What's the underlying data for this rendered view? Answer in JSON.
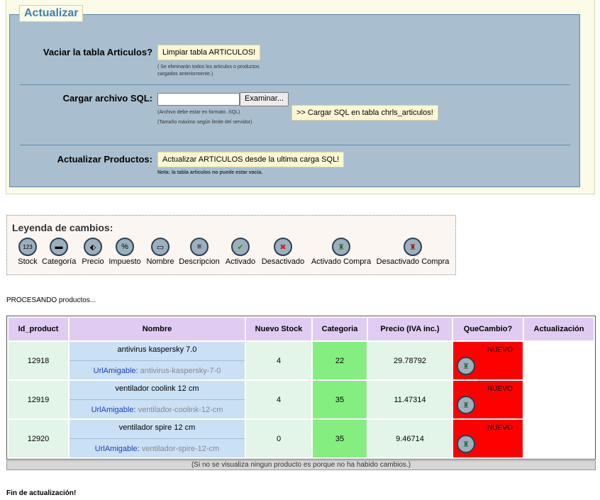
{
  "form": {
    "legend": "Actualizar",
    "vaciar": {
      "label": "Vaciar la tabla Articulos?",
      "button": "Limpiar tabla ARTICULOS!",
      "note_line1": "( Se eliminarán todos los articulos o productos",
      "note_line2": "cargados anteriormente.)"
    },
    "cargar": {
      "label": "Cargar archivo SQL:",
      "file_value": "",
      "browse_button": "Examinar...",
      "note_format": "(Archivo debe estar en formato .SQL)",
      "note_size": "(Tamaño máximo según limite del servidor)",
      "load_button": ">> Cargar SQL en tabla chrls_articulos!"
    },
    "actualizar": {
      "label": "Actualizar Productos:",
      "button": "Actualizar ARTICULOS desde la ultima carga SQL!",
      "note": "Nota: la tabla articulos no puede estar vacia."
    }
  },
  "legend_box": {
    "title": "Leyenda de cambios:",
    "items": [
      {
        "label": "Stock",
        "icon": "stock-icon",
        "glyph": "123"
      },
      {
        "label": "Categoría",
        "icon": "folder-icon",
        "glyph": "▬"
      },
      {
        "label": "Precio",
        "icon": "price-tag-icon",
        "glyph": "⬖"
      },
      {
        "label": "Impuesto",
        "icon": "tax-percent-icon",
        "glyph": "%"
      },
      {
        "label": "Nombre",
        "icon": "name-card-icon",
        "glyph": "▭"
      },
      {
        "label": "Descripcion",
        "icon": "description-doc-icon",
        "glyph": "≡"
      },
      {
        "label": "Activado",
        "icon": "check-icon",
        "glyph": "✔"
      },
      {
        "label": "Desactivado",
        "icon": "cross-icon",
        "glyph": "✖"
      },
      {
        "label": "Activado Compra",
        "icon": "basket-active-icon",
        "glyph": "♜"
      },
      {
        "label": "Desactivado Compra",
        "icon": "basket-inactive-icon",
        "glyph": "♜"
      }
    ]
  },
  "processing_text": "PROCESANDO productos...",
  "table": {
    "headers": [
      "Id_product",
      "Nombre",
      "Nuevo Stock",
      "Categoria",
      "Precio (IVA inc.)",
      "QueCambio?",
      "Actualización"
    ],
    "url_label": "UrlAmigable:",
    "rows": [
      {
        "id": "12918",
        "nombre": "antivirus kaspersky 7.0",
        "url": "antivirus-kaspersky-7-0",
        "stock": "4",
        "categoria": "22",
        "precio": "29.78792",
        "cambio": "NUEVO",
        "actualizacion": ""
      },
      {
        "id": "12919",
        "nombre": "ventilador coolink 12 cm",
        "url": "ventilador-coolink-12-cm",
        "stock": "4",
        "categoria": "35",
        "precio": "11.47314",
        "cambio": "NUEVO",
        "actualizacion": ""
      },
      {
        "id": "12920",
        "nombre": "ventilador spire 12 cm",
        "url": "ventilador-spire-12-cm",
        "stock": "0",
        "categoria": "35",
        "precio": "9.46714",
        "cambio": "NUEVO",
        "actualizacion": ""
      }
    ],
    "footer": "(Si no se visualiza ningun producto es porque no ha habido cambios.)"
  },
  "fin_text": "Fin de actualización!",
  "colors": {
    "fieldset_bg": "#a9bfcf",
    "header_bg": "#e0ccf2",
    "category_bg": "#85ee80",
    "change_bg": "#ff0000"
  }
}
